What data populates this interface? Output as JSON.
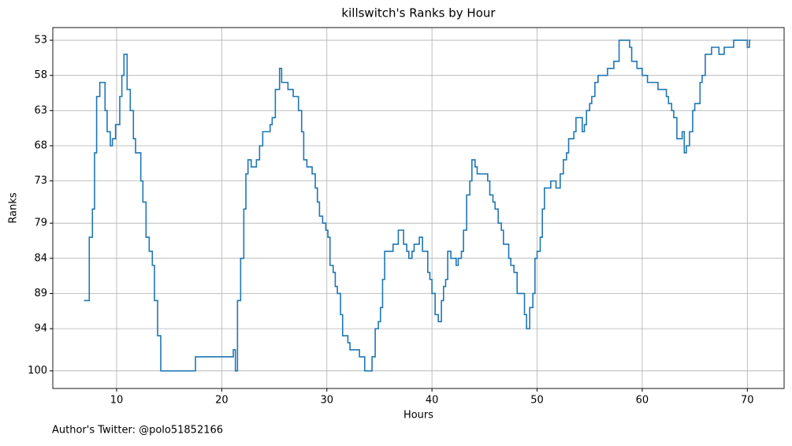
{
  "chart_data": {
    "type": "step",
    "title": "killswitch's Ranks by Hour",
    "x_label": "Hours",
    "y_label": "Ranks",
    "annotation": "Author's Twitter: @polo51852166",
    "x": [
      6.9,
      7.4,
      7.7,
      7.9,
      8.1,
      8.4,
      8.9,
      9.1,
      9.4,
      9.6,
      9.9,
      10.3,
      10.5,
      10.7,
      11.0,
      11.3,
      11.6,
      11.8,
      12.3,
      12.5,
      12.8,
      13.1,
      13.4,
      13.6,
      13.9,
      14.2,
      17.5,
      21.1,
      21.3,
      21.5,
      21.8,
      22.1,
      22.3,
      22.5,
      22.8,
      23.3,
      23.6,
      23.9,
      24.6,
      24.8,
      25.1,
      25.5,
      25.7,
      26.3,
      26.8,
      27.3,
      27.6,
      27.8,
      28.1,
      28.6,
      28.9,
      29.1,
      29.3,
      29.6,
      29.9,
      30.1,
      30.3,
      30.6,
      30.8,
      31.0,
      31.3,
      31.5,
      32.0,
      32.2,
      33.1,
      33.6,
      34.3,
      34.6,
      34.9,
      35.1,
      35.3,
      35.5,
      36.3,
      36.8,
      37.3,
      37.6,
      37.8,
      38.1,
      38.3,
      38.8,
      39.1,
      39.6,
      39.8,
      40.0,
      40.3,
      40.6,
      40.9,
      41.1,
      41.3,
      41.5,
      41.8,
      42.3,
      42.5,
      42.8,
      43.0,
      43.3,
      43.6,
      43.8,
      44.1,
      44.3,
      45.3,
      45.5,
      45.8,
      46.0,
      46.3,
      46.6,
      46.8,
      47.3,
      47.5,
      47.8,
      48.1,
      48.8,
      49.0,
      49.3,
      49.6,
      49.8,
      50.0,
      50.3,
      50.5,
      50.7,
      51.3,
      51.8,
      52.2,
      52.5,
      52.8,
      53.0,
      53.5,
      53.7,
      54.3,
      54.5,
      54.7,
      55.0,
      55.2,
      55.5,
      55.8,
      56.7,
      57.3,
      57.8,
      58.8,
      59.0,
      59.5,
      60.0,
      60.5,
      61.5,
      62.3,
      62.5,
      62.8,
      63.0,
      63.3,
      63.8,
      64.0,
      64.2,
      64.5,
      64.8,
      65.0,
      65.5,
      65.7,
      66.0,
      66.6,
      67.3,
      67.8,
      68.7,
      70.0,
      70.2,
      70.3
    ],
    "series": [
      {
        "name": "Ranks",
        "color": "#1f77b4",
        "values": [
          90,
          81,
          77,
          69,
          61,
          59,
          63,
          66,
          68,
          67,
          65,
          61,
          58,
          55,
          60,
          63,
          67,
          69,
          73,
          76,
          81,
          83,
          85,
          90,
          95,
          100,
          98,
          97,
          100,
          90,
          84,
          77,
          72,
          70,
          71,
          70,
          68,
          66,
          65,
          64,
          60,
          57,
          59,
          60,
          61,
          63,
          66,
          70,
          71,
          72,
          74,
          76,
          78,
          79,
          80,
          81,
          85,
          86,
          88,
          89,
          92,
          95,
          96,
          97,
          98,
          100,
          98,
          94,
          93,
          91,
          87,
          83,
          82,
          80,
          82,
          83,
          84,
          83,
          82,
          81,
          83,
          86,
          87,
          89,
          92,
          93,
          90,
          88,
          87,
          83,
          84,
          85,
          84,
          83,
          80,
          75,
          73,
          70,
          71,
          72,
          73,
          75,
          76,
          77,
          79,
          80,
          82,
          84,
          85,
          86,
          89,
          92,
          94,
          91,
          89,
          84,
          83,
          81,
          77,
          74,
          73,
          74,
          72,
          70,
          69,
          67,
          66,
          64,
          66,
          65,
          63,
          62,
          61,
          59,
          58,
          57,
          56,
          53,
          54,
          56,
          57,
          58,
          59,
          60,
          61,
          62,
          63,
          64,
          67,
          66,
          69,
          68,
          66,
          63,
          62,
          59,
          58,
          55,
          54,
          55,
          54,
          53,
          54,
          53,
          53
        ]
      }
    ],
    "xlim": [
      3.93,
      73.5
    ],
    "ylim": [
      102.5,
      51.2
    ],
    "xticks": [
      10,
      20,
      30,
      40,
      50,
      60,
      70
    ],
    "yticks": [
      53,
      58,
      63,
      68,
      73,
      79,
      84,
      89,
      94,
      100
    ],
    "grid": true
  }
}
